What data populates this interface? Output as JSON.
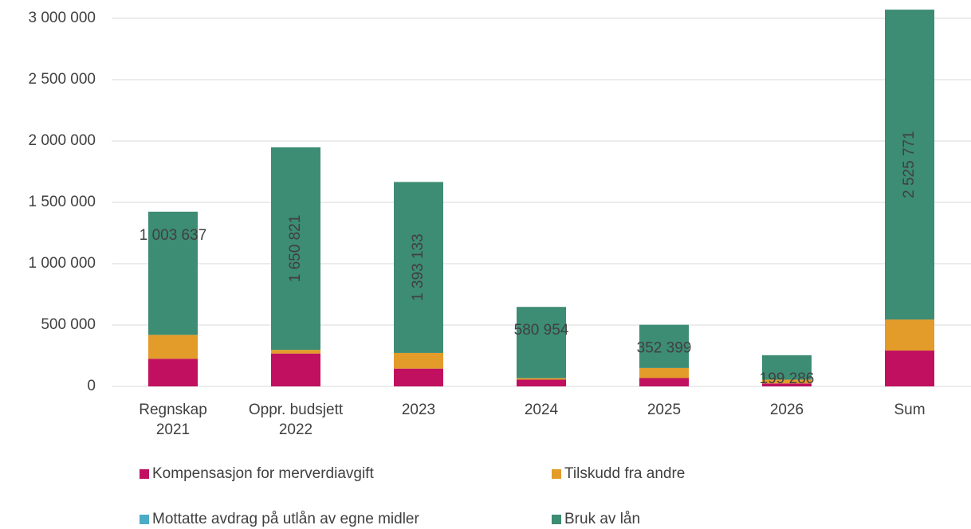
{
  "chart_data": {
    "type": "stacked_bar",
    "categories": [
      [
        "Regnskap",
        "2021"
      ],
      [
        "Oppr. budsjett",
        "2022"
      ],
      "2023",
      "2024",
      "2025",
      "2026",
      "Sum"
    ],
    "series": [
      {
        "name": "Kompensasjon for merverdiavgift",
        "color": "#c0105f",
        "values": [
          225000,
          268000,
          145000,
          55000,
          68000,
          24000,
          292000
        ]
      },
      {
        "name": "Tilskudd fra andre",
        "color": "#e39b2a",
        "values": [
          195000,
          30000,
          128000,
          12000,
          82000,
          31000,
          253000
        ]
      },
      {
        "name": "Mottatte avdrag på utlån av egne midler",
        "color": "#4bacc6",
        "values": [
          0,
          0,
          0,
          0,
          0,
          0,
          0
        ]
      },
      {
        "name": "Bruk av lån",
        "color": "#3d8c74",
        "values": [
          1003637,
          1650821,
          1393133,
          580954,
          352399,
          199286,
          2525771
        ],
        "value_labels": [
          "1 003 637",
          "1 650 821",
          "1 393 133",
          "580 954",
          "352 399",
          "199 286",
          "2 525 771"
        ]
      }
    ],
    "ylim": [
      0,
      3150000
    ],
    "yticks": [
      {
        "value": 0,
        "label": "0"
      },
      {
        "value": 500000,
        "label": "500 000"
      },
      {
        "value": 1000000,
        "label": "1 000 000"
      },
      {
        "value": 1500000,
        "label": "1 500 000"
      },
      {
        "value": 2000000,
        "label": "2 000 000"
      },
      {
        "value": 2500000,
        "label": "2 500 000"
      },
      {
        "value": 3000000,
        "label": "3 000 000"
      }
    ],
    "grid": true,
    "legend": "bottom"
  }
}
